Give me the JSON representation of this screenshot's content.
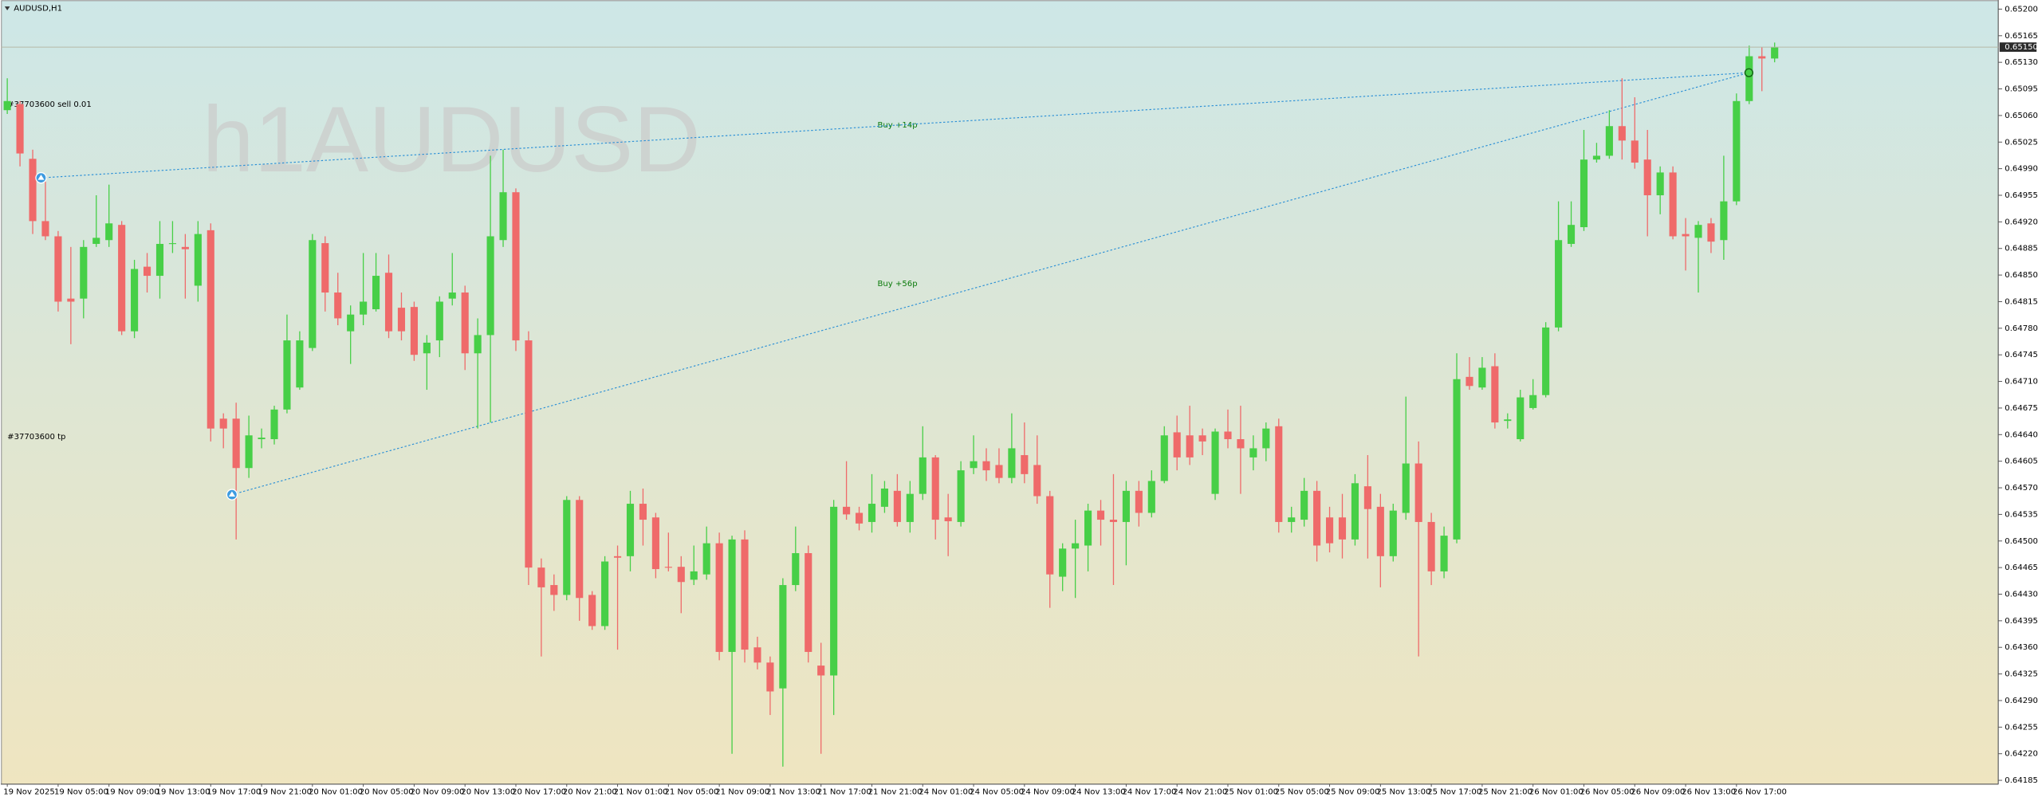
{
  "chart_data": {
    "type": "candlestick",
    "title": "AUDUSD,H1",
    "watermark": "h1AUDUSD",
    "annotations": [
      "#37703600 sell 0.01",
      "#37703600 tp",
      "Buy +14p",
      "Buy +56p"
    ],
    "up_color": "#47cf47",
    "down_color": "#ef6a6a",
    "bid": {
      "value": 0.6515,
      "label": "0.65150"
    },
    "ylim": [
      0.6418,
      0.65212
    ],
    "yticks": [
      {
        "value": 0.652,
        "label": "0.65200"
      },
      0.65165,
      {
        "value": 0.6513,
        "label": "0.65130"
      },
      0.65095,
      {
        "value": 0.6506,
        "label": "0.65060"
      },
      0.65025,
      {
        "value": 0.6499,
        "label": "0.64990"
      },
      0.64955,
      {
        "value": 0.6492,
        "label": "0.64920"
      },
      0.64885,
      {
        "value": 0.6485,
        "label": "0.64850"
      },
      0.64815,
      {
        "value": 0.6478,
        "label": "0.64780"
      },
      0.64745,
      {
        "value": 0.6471,
        "label": "0.64710"
      },
      0.64675,
      {
        "value": 0.6464,
        "label": "0.64640"
      },
      0.64605,
      {
        "value": 0.6457,
        "label": "0.64570"
      },
      0.64535,
      {
        "value": 0.645,
        "label": "0.64500"
      },
      0.64465,
      {
        "value": 0.6443,
        "label": "0.64430"
      },
      0.64395,
      {
        "value": 0.6436,
        "label": "0.64360"
      },
      0.64325,
      {
        "value": 0.6429,
        "label": "0.64290"
      },
      0.64255,
      {
        "value": 0.6422,
        "label": "0.64220"
      },
      0.64185
    ],
    "categories": [
      "19 Nov 2025",
      null,
      null,
      null,
      "19 Nov 05:00",
      null,
      null,
      null,
      "19 Nov 09:00",
      null,
      null,
      null,
      "19 Nov 13:00",
      null,
      null,
      null,
      "19 Nov 17:00",
      null,
      null,
      null,
      "19 Nov 21:00",
      null,
      null,
      null,
      "20 Nov 01:00",
      null,
      null,
      null,
      "20 Nov 05:00",
      null,
      null,
      null,
      "20 Nov 09:00",
      null,
      null,
      null,
      "20 Nov 13:00",
      null,
      null,
      null,
      "20 Nov 17:00",
      null,
      null,
      null,
      "20 Nov 21:00",
      null,
      null,
      null,
      "21 Nov 01:00",
      null,
      null,
      null,
      "21 Nov 05:00",
      null,
      null,
      null,
      "21 Nov 09:00",
      null,
      null,
      null,
      "21 Nov 13:00",
      null,
      null,
      null,
      "21 Nov 17:00",
      null,
      null,
      null,
      "21 Nov 21:00",
      null,
      null,
      null,
      "24 Nov 01:00",
      null,
      null,
      null,
      "24 Nov 05:00",
      null,
      null,
      null,
      "24 Nov 09:00",
      null,
      null,
      null,
      "24 Nov 13:00",
      null,
      null,
      null,
      "24 Nov 17:00",
      null,
      null,
      null,
      "24 Nov 21:00",
      null,
      null,
      null,
      "25 Nov 01:00",
      null,
      null,
      null,
      "25 Nov 05:00",
      null,
      null,
      null,
      "25 Nov 09:00",
      null,
      null,
      null,
      "25 Nov 13:00",
      null,
      null,
      null,
      "25 Nov 17:00",
      null,
      null,
      null,
      "25 Nov 21:00",
      null,
      null,
      null,
      "26 Nov 01:00",
      null,
      null,
      null,
      "26 Nov 05:00",
      null,
      null,
      null,
      "26 Nov 09:00",
      null,
      null,
      null,
      "26 Nov 13:00",
      null,
      null,
      null,
      "26 Nov 17:00",
      null,
      null,
      null
    ],
    "open": [
      0.65067,
      0.65075,
      0.65003,
      0.64921,
      0.64901,
      0.64819,
      0.64819,
      0.64891,
      0.64896,
      0.64916,
      0.64776,
      0.64861,
      0.64849,
      0.64891,
      0.64887,
      0.64836,
      0.64909,
      0.64661,
      0.64661,
      0.64596,
      0.64634,
      0.64634,
      0.64673,
      0.64702,
      0.64754,
      0.64892,
      0.64827,
      0.64776,
      0.64798,
      0.64805,
      0.64853,
      0.64807,
      0.64808,
      0.64747,
      0.64764,
      0.64819,
      0.64827,
      0.64747,
      0.64771,
      0.64896,
      0.64959,
      0.64764,
      0.64465,
      0.64442,
      0.64429,
      0.64554,
      0.64429,
      0.64388,
      0.6448,
      0.6448,
      0.64549,
      0.64531,
      0.64466,
      0.64466,
      0.64449,
      0.64456,
      0.64497,
      0.64354,
      0.64502,
      0.6436,
      0.6434,
      0.64306,
      0.64442,
      0.64484,
      0.64336,
      0.64323,
      0.64545,
      0.64537,
      0.64525,
      0.64545,
      0.64566,
      0.64525,
      0.64562,
      0.6461,
      0.64531,
      0.64525,
      0.64596,
      0.64605,
      0.646,
      0.64583,
      0.64613,
      0.646,
      0.64559,
      0.64453,
      0.6449,
      0.64494,
      0.6454,
      0.64528,
      0.64525,
      0.64566,
      0.64537,
      0.64579,
      0.64643,
      0.64639,
      0.64639,
      0.64562,
      0.64644,
      0.64634,
      0.6461,
      0.64622,
      0.64651,
      0.64525,
      0.64528,
      0.64566,
      0.64531,
      0.64531,
      0.64502,
      0.64572,
      0.64545,
      0.6448,
      0.64537,
      0.64602,
      0.64525,
      0.6446,
      0.64502,
      0.64716,
      0.64702,
      0.6473,
      0.64658,
      0.64634,
      0.64675,
      0.64692,
      0.64781,
      0.64891,
      0.64913,
      0.65002,
      0.65007,
      0.65046,
      0.65027,
      0.65002,
      0.64955,
      0.64985,
      0.64904,
      0.64899,
      0.64918,
      0.64896,
      0.64947,
      0.65079,
      0.65138,
      0.65135
    ],
    "high": [
      0.65109,
      0.65079,
      0.65015,
      0.64973,
      0.64908,
      0.64887,
      0.64896,
      0.64955,
      0.64969,
      0.64921,
      0.6487,
      0.64879,
      0.64921,
      0.64921,
      0.64904,
      0.64921,
      0.64918,
      0.64668,
      0.64682,
      0.64665,
      0.64648,
      0.64678,
      0.64798,
      0.64776,
      0.64904,
      0.64901,
      0.64853,
      0.6481,
      0.64879,
      0.64879,
      0.64877,
      0.64827,
      0.64815,
      0.64771,
      0.64822,
      0.64879,
      0.64836,
      0.64793,
      0.65007,
      0.65015,
      0.64964,
      0.64776,
      0.64477,
      0.64456,
      0.64559,
      0.64559,
      0.64434,
      0.6448,
      0.64494,
      0.64566,
      0.64569,
      0.64537,
      0.64511,
      0.6448,
      0.64494,
      0.64519,
      0.64511,
      0.64507,
      0.64514,
      0.64374,
      0.64348,
      0.64451,
      0.64519,
      0.64494,
      0.64366,
      0.64554,
      0.64605,
      0.64545,
      0.64588,
      0.64579,
      0.64588,
      0.64579,
      0.64651,
      0.64613,
      0.64562,
      0.64605,
      0.64639,
      0.64622,
      0.64622,
      0.64668,
      0.64656,
      0.64639,
      0.64566,
      0.64497,
      0.64528,
      0.64549,
      0.64554,
      0.64588,
      0.64579,
      0.64579,
      0.64593,
      0.64651,
      0.64665,
      0.64678,
      0.64648,
      0.64648,
      0.64673,
      0.64678,
      0.64639,
      0.64656,
      0.64661,
      0.64545,
      0.64583,
      0.64579,
      0.64545,
      0.64562,
      0.64588,
      0.64613,
      0.64562,
      0.64549,
      0.6469,
      0.64631,
      0.64537,
      0.64519,
      0.64747,
      0.64742,
      0.64742,
      0.64747,
      0.64668,
      0.64699,
      0.64713,
      0.64788,
      0.64947,
      0.64947,
      0.65041,
      0.65024,
      0.65067,
      0.65109,
      0.65084,
      0.65041,
      0.64993,
      0.64993,
      0.64925,
      0.64921,
      0.64925,
      0.65007,
      0.65089,
      0.65152,
      0.6515,
      0.65156
    ],
    "low": [
      0.65062,
      0.64993,
      0.64904,
      0.64896,
      0.64802,
      0.64759,
      0.64793,
      0.64887,
      0.64887,
      0.64771,
      0.64767,
      0.64827,
      0.64819,
      0.64879,
      0.64819,
      0.64815,
      0.64631,
      0.64622,
      0.64502,
      0.64583,
      0.64622,
      0.64627,
      0.64668,
      0.64699,
      0.6475,
      0.64802,
      0.64784,
      0.64733,
      0.64784,
      0.64802,
      0.64767,
      0.64764,
      0.64737,
      0.64699,
      0.64742,
      0.6481,
      0.64725,
      0.64648,
      0.64656,
      0.64887,
      0.6475,
      0.64442,
      0.64348,
      0.64408,
      0.64422,
      0.64395,
      0.64383,
      0.64383,
      0.64357,
      0.6446,
      0.64494,
      0.64451,
      0.6446,
      0.64405,
      0.64442,
      0.64449,
      0.64343,
      0.6422,
      0.6434,
      0.64331,
      0.64271,
      0.64203,
      0.64434,
      0.6434,
      0.6422,
      0.64271,
      0.64528,
      0.64514,
      0.64511,
      0.64537,
      0.64519,
      0.64511,
      0.64554,
      0.64502,
      0.6448,
      0.64519,
      0.64588,
      0.64579,
      0.64576,
      0.64576,
      0.64576,
      0.64549,
      0.64412,
      0.64434,
      0.64425,
      0.6446,
      0.64494,
      0.64442,
      0.64468,
      0.64519,
      0.64531,
      0.64576,
      0.64593,
      0.646,
      0.64613,
      0.64554,
      0.64622,
      0.64562,
      0.64593,
      0.64605,
      0.64511,
      0.64511,
      0.64519,
      0.64473,
      0.64485,
      0.64477,
      0.64494,
      0.64477,
      0.64439,
      0.64473,
      0.64528,
      0.64348,
      0.64442,
      0.64451,
      0.64497,
      0.64699,
      0.64699,
      0.64648,
      0.64648,
      0.64631,
      0.64673,
      0.64689,
      0.64776,
      0.64887,
      0.64908,
      0.64998,
      0.65003,
      0.65002,
      0.6499,
      0.64901,
      0.6493,
      0.64897,
      0.64856,
      0.64827,
      0.64879,
      0.6487,
      0.64942,
      0.65075,
      0.65092,
      0.6513
    ],
    "close": [
      0.65079,
      0.6501,
      0.64921,
      0.64901,
      0.64815,
      0.64815,
      0.64887,
      0.64899,
      0.64918,
      0.64776,
      0.64858,
      0.64849,
      0.64891,
      0.64892,
      0.64884,
      0.64904,
      0.64648,
      0.64648,
      0.64596,
      0.64639,
      0.64636,
      0.64673,
      0.64764,
      0.64764,
      0.64896,
      0.64827,
      0.64793,
      0.64798,
      0.64815,
      0.64849,
      0.64776,
      0.64776,
      0.64745,
      0.64761,
      0.64815,
      0.64827,
      0.64747,
      0.64771,
      0.64901,
      0.64959,
      0.64764,
      0.64465,
      0.64439,
      0.64429,
      0.64554,
      0.64425,
      0.64388,
      0.64473,
      0.64478,
      0.64549,
      0.64528,
      0.64463,
      0.64465,
      0.64446,
      0.6446,
      0.64497,
      0.64354,
      0.64502,
      0.64357,
      0.6434,
      0.64302,
      0.64442,
      0.64484,
      0.64354,
      0.64323,
      0.64545,
      0.64535,
      0.64523,
      0.64549,
      0.64569,
      0.64525,
      0.64562,
      0.6461,
      0.64528,
      0.64526,
      0.64593,
      0.64605,
      0.64593,
      0.64583,
      0.64622,
      0.64588,
      0.64559,
      0.64456,
      0.6449,
      0.64497,
      0.6454,
      0.64528,
      0.64525,
      0.64566,
      0.64537,
      0.64579,
      0.64639,
      0.6461,
      0.6461,
      0.64631,
      0.64644,
      0.64634,
      0.64622,
      0.64622,
      0.64648,
      0.64525,
      0.64531,
      0.64566,
      0.64494,
      0.64497,
      0.64502,
      0.64576,
      0.64542,
      0.6448,
      0.6454,
      0.64602,
      0.64525,
      0.6446,
      0.64507,
      0.64713,
      0.64704,
      0.64728,
      0.64656,
      0.6466,
      0.64689,
      0.64692,
      0.64781,
      0.64896,
      0.64916,
      0.65002,
      0.65007,
      0.65046,
      0.65027,
      0.64998,
      0.64955,
      0.64985,
      0.64901,
      0.64901,
      0.64916,
      0.64894,
      0.64947,
      0.65079,
      0.65138,
      0.65135,
      0.6515
    ]
  }
}
